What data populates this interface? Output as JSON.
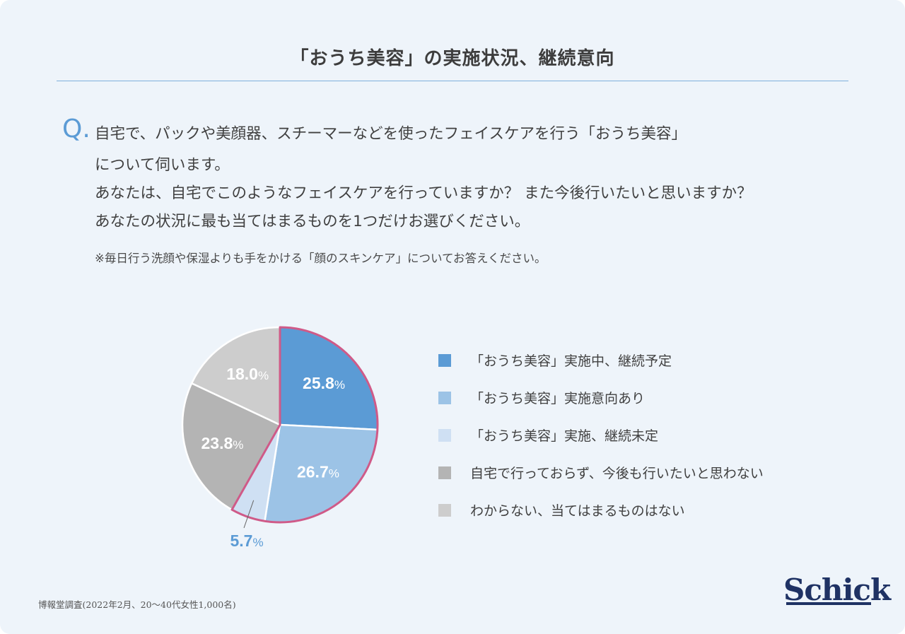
{
  "title": "「おうち美容」の実施状況、継続意向",
  "question": {
    "mark": "Q.",
    "lines": [
      "自宅で、パックや美顔器、スチーマーなどを使ったフェイスケアを行う「おうち美容」",
      "について伺います。",
      "あなたは、自宅でこのようなフェイスケアを行っていますか？ また今後行いたいと思いますか？",
      "あなたの状況に最も当てはまるものを1つだけお選びください。"
    ],
    "note": "※毎日行う洗顔や保湿よりも手をかける「顔のスキンケア」についてお答えください。"
  },
  "chart_data": {
    "type": "pie",
    "unit": "%",
    "slices": [
      {
        "label": "「おうち美容」実施中、継続予定",
        "value": 25.8,
        "display": "25.8",
        "color": "#5b9bd5"
      },
      {
        "label": "「おうち美容」実施意向あり",
        "value": 26.7,
        "display": "26.7",
        "color": "#9cc3e6"
      },
      {
        "label": "「おうち美容」実施、継続未定",
        "value": 5.7,
        "display": "5.7",
        "color": "#cfe0f3"
      },
      {
        "label": "自宅で行っておらず、今後も行いたいと思わない",
        "value": 23.8,
        "display": "23.8",
        "color": "#b4b4b4"
      },
      {
        "label": "わからない、当てはまるものはない",
        "value": 18.0,
        "display": "18.0",
        "color": "#cdcdcd"
      }
    ],
    "highlight_color": "#cf5a88",
    "highlighted_slices": [
      0,
      1,
      2
    ]
  },
  "source": "博報堂調査(2022年2月、20〜40代女性1,000名)",
  "logo": "Schick"
}
